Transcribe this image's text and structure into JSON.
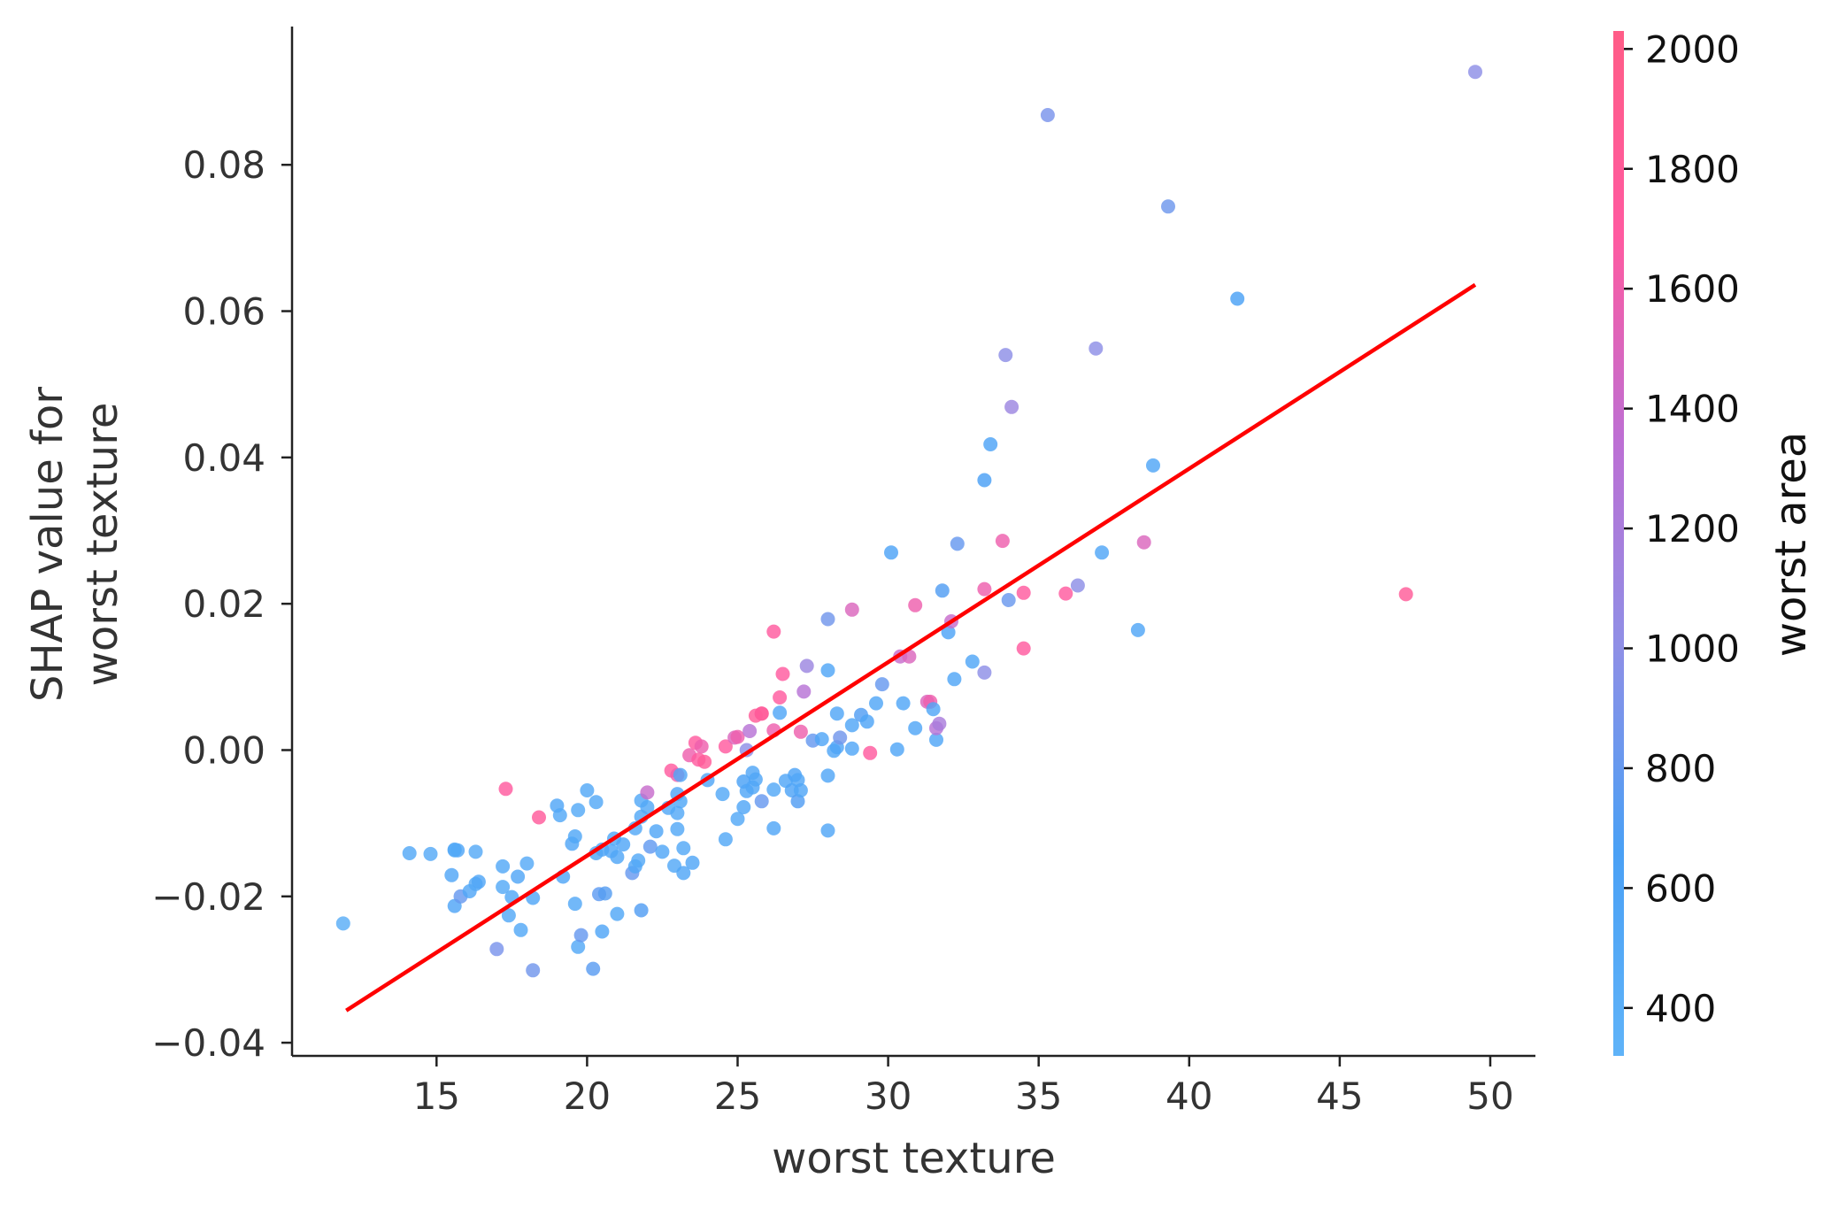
{
  "chart_data": {
    "type": "scatter",
    "title": "",
    "xlabel": "worst texture",
    "ylabel_lines": [
      "SHAP value for",
      "worst texture"
    ],
    "xlim": [
      10.2,
      51.5
    ],
    "ylim": [
      -0.0418,
      0.0989
    ],
    "xticks": [
      15,
      20,
      25,
      30,
      35,
      40,
      45,
      50
    ],
    "xtick_labels": [
      "15",
      "20",
      "25",
      "30",
      "35",
      "40",
      "45",
      "50"
    ],
    "yticks": [
      -0.04,
      -0.02,
      0.0,
      0.02,
      0.04,
      0.06,
      0.08
    ],
    "ytick_labels": [
      "−0.04",
      "−0.02",
      "0.00",
      "0.02",
      "0.04",
      "0.06",
      "0.08"
    ],
    "grid": false,
    "colorbar": {
      "label": "worst area",
      "range": [
        320,
        2030
      ],
      "ticks": [
        400,
        600,
        800,
        1000,
        1200,
        1400,
        1600,
        1800,
        2000
      ],
      "tick_labels": [
        "400",
        "600",
        "800",
        "1000",
        "1200",
        "1400",
        "1600",
        "1800",
        "2000"
      ],
      "colors": [
        "#5fb3f8",
        "#4aa0f5",
        "#8f8fe6",
        "#bd6fd4",
        "#ff5aa0",
        "#ff5c87"
      ]
    },
    "fit_line": {
      "color": "#ff0000",
      "points": [
        [
          12.0,
          -0.0356
        ],
        [
          49.5,
          0.0636
        ]
      ]
    },
    "series": [
      {
        "points": [
          [
            11.9,
            -0.0237,
            420
          ],
          [
            14.1,
            -0.0141,
            520
          ],
          [
            14.8,
            -0.0142,
            480
          ],
          [
            15.5,
            -0.0171,
            560
          ],
          [
            15.6,
            -0.0136,
            520
          ],
          [
            15.6,
            -0.0213,
            580
          ],
          [
            15.7,
            -0.0137,
            560
          ],
          [
            15.8,
            -0.02,
            800
          ],
          [
            16.1,
            -0.0193,
            560
          ],
          [
            16.3,
            -0.0139,
            480
          ],
          [
            16.3,
            -0.0183,
            520
          ],
          [
            16.4,
            -0.018,
            560
          ],
          [
            15.6,
            -0.0137,
            500
          ],
          [
            17.0,
            -0.0272,
            900
          ],
          [
            17.2,
            -0.0187,
            500
          ],
          [
            17.2,
            -0.0159,
            520
          ],
          [
            17.3,
            -0.0053,
            1700
          ],
          [
            17.4,
            -0.0226,
            520
          ],
          [
            17.5,
            -0.0201,
            540
          ],
          [
            17.7,
            -0.0173,
            560
          ],
          [
            17.8,
            -0.0246,
            520
          ],
          [
            18.0,
            -0.0155,
            480
          ],
          [
            18.2,
            -0.0202,
            560
          ],
          [
            18.2,
            -0.0301,
            860
          ],
          [
            18.4,
            -0.0092,
            1750
          ],
          [
            19.0,
            -0.0076,
            560
          ],
          [
            19.1,
            -0.0089,
            520
          ],
          [
            19.2,
            -0.0173,
            560
          ],
          [
            19.5,
            -0.0128,
            560
          ],
          [
            19.6,
            -0.021,
            520
          ],
          [
            19.6,
            -0.0118,
            540
          ],
          [
            19.7,
            -0.0082,
            500
          ],
          [
            19.7,
            -0.0269,
            520
          ],
          [
            19.8,
            -0.0253,
            800
          ],
          [
            20.0,
            -0.0055,
            520
          ],
          [
            20.2,
            -0.0299,
            740
          ],
          [
            20.3,
            -0.0141,
            560
          ],
          [
            20.3,
            -0.0071,
            520
          ],
          [
            20.4,
            -0.0197,
            760
          ],
          [
            20.5,
            -0.0136,
            560
          ],
          [
            20.5,
            -0.0248,
            580
          ],
          [
            20.6,
            -0.0196,
            720
          ],
          [
            20.8,
            -0.0138,
            560
          ],
          [
            20.9,
            -0.0121,
            540
          ],
          [
            21.0,
            -0.0224,
            540
          ],
          [
            21.0,
            -0.0146,
            560
          ],
          [
            21.2,
            -0.0129,
            560
          ],
          [
            21.5,
            -0.0168,
            800
          ],
          [
            21.6,
            -0.0107,
            520
          ],
          [
            21.6,
            -0.0159,
            560
          ],
          [
            21.7,
            -0.0151,
            520
          ],
          [
            21.8,
            -0.0091,
            520
          ],
          [
            21.8,
            -0.0069,
            520
          ],
          [
            21.8,
            -0.0219,
            700
          ],
          [
            22.0,
            -0.0078,
            520
          ],
          [
            22.0,
            -0.0058,
            1400
          ],
          [
            22.1,
            -0.0132,
            780
          ],
          [
            22.3,
            -0.0111,
            560
          ],
          [
            22.5,
            -0.0139,
            560
          ],
          [
            22.7,
            -0.0079,
            520
          ],
          [
            22.8,
            -0.0028,
            1700
          ],
          [
            22.9,
            -0.0158,
            520
          ],
          [
            23.0,
            -0.0086,
            520
          ],
          [
            23.0,
            -0.0108,
            520
          ],
          [
            23.0,
            -0.006,
            560
          ],
          [
            23.0,
            -0.0034,
            1600
          ],
          [
            23.1,
            -0.0034,
            560
          ],
          [
            23.1,
            -0.007,
            540
          ],
          [
            23.2,
            -0.0168,
            560
          ],
          [
            23.2,
            -0.0134,
            520
          ],
          [
            23.4,
            -0.0007,
            1600
          ],
          [
            23.5,
            -0.0154,
            560
          ],
          [
            23.6,
            0.001,
            1700
          ],
          [
            23.7,
            -0.0013,
            1700
          ],
          [
            23.8,
            0.0005,
            1600
          ],
          [
            23.9,
            -0.0016,
            1800
          ],
          [
            24.0,
            -0.0041,
            560
          ],
          [
            24.5,
            -0.006,
            520
          ],
          [
            24.6,
            -0.0122,
            520
          ],
          [
            24.6,
            0.0005,
            1700
          ],
          [
            24.9,
            0.0017,
            1500
          ],
          [
            25.0,
            0.0018,
            1600
          ],
          [
            25.0,
            -0.0094,
            520
          ],
          [
            25.2,
            -0.0043,
            640
          ],
          [
            25.2,
            -0.0078,
            560
          ],
          [
            25.3,
            0.0,
            1000
          ],
          [
            25.3,
            -0.0056,
            560
          ],
          [
            25.4,
            0.0026,
            1300
          ],
          [
            25.5,
            -0.0031,
            560
          ],
          [
            25.5,
            -0.0051,
            560
          ],
          [
            25.6,
            0.0047,
            1800
          ],
          [
            25.6,
            -0.004,
            560
          ],
          [
            25.8,
            0.005,
            1700
          ],
          [
            25.8,
            -0.007,
            800
          ],
          [
            25.8,
            0.005,
            1800
          ],
          [
            26.2,
            0.0162,
            1700
          ],
          [
            26.2,
            -0.0107,
            560
          ],
          [
            26.2,
            0.0027,
            1600
          ],
          [
            26.2,
            -0.0054,
            520
          ],
          [
            26.4,
            0.0051,
            560
          ],
          [
            26.4,
            0.0072,
            1700
          ],
          [
            26.5,
            0.0104,
            1700
          ],
          [
            26.6,
            -0.0042,
            560
          ],
          [
            26.8,
            -0.0055,
            600
          ],
          [
            26.9,
            -0.0034,
            600
          ],
          [
            27.0,
            -0.007,
            700
          ],
          [
            27.0,
            -0.0041,
            560
          ],
          [
            27.1,
            -0.0055,
            560
          ],
          [
            27.1,
            0.0025,
            1600
          ],
          [
            27.2,
            0.008,
            1300
          ],
          [
            27.3,
            0.0115,
            1100
          ],
          [
            27.5,
            0.0013,
            800
          ],
          [
            27.8,
            0.0015,
            560
          ],
          [
            28.0,
            0.0109,
            560
          ],
          [
            28.0,
            -0.0035,
            560
          ],
          [
            28.0,
            -0.011,
            560
          ],
          [
            28.0,
            0.0179,
            860
          ],
          [
            28.3,
            0.005,
            560
          ],
          [
            28.2,
            -0.0001,
            560
          ],
          [
            28.3,
            0.0004,
            580
          ],
          [
            28.4,
            0.0017,
            860
          ],
          [
            28.8,
            0.0002,
            560
          ],
          [
            28.8,
            0.0192,
            1500
          ],
          [
            28.8,
            0.0034,
            560
          ],
          [
            29.1,
            0.0048,
            700
          ],
          [
            29.3,
            0.0039,
            580
          ],
          [
            29.4,
            -0.0004,
            1700
          ],
          [
            29.6,
            0.0064,
            560
          ],
          [
            29.8,
            0.009,
            800
          ],
          [
            30.1,
            0.027,
            600
          ],
          [
            30.3,
            0.0001,
            560
          ],
          [
            30.4,
            0.0128,
            1400
          ],
          [
            30.5,
            0.0064,
            560
          ],
          [
            30.7,
            0.0128,
            1500
          ],
          [
            30.9,
            0.0198,
            1600
          ],
          [
            30.9,
            0.003,
            560
          ],
          [
            31.3,
            0.0066,
            1500
          ],
          [
            31.4,
            0.0066,
            1600
          ],
          [
            31.5,
            0.0056,
            560
          ],
          [
            31.6,
            0.0014,
            560
          ],
          [
            31.6,
            0.003,
            1300
          ],
          [
            31.7,
            0.0036,
            1200
          ],
          [
            31.8,
            0.0218,
            700
          ],
          [
            32.0,
            0.0161,
            600
          ],
          [
            32.1,
            0.0176,
            1400
          ],
          [
            32.2,
            0.0097,
            560
          ],
          [
            32.3,
            0.0282,
            800
          ],
          [
            32.8,
            0.0121,
            560
          ],
          [
            33.2,
            0.0369,
            660
          ],
          [
            33.2,
            0.022,
            1600
          ],
          [
            33.2,
            0.0106,
            1000
          ],
          [
            33.4,
            0.0418,
            600
          ],
          [
            33.8,
            0.0286,
            1600
          ],
          [
            33.9,
            0.054,
            1000
          ],
          [
            34.0,
            0.0205,
            820
          ],
          [
            34.1,
            0.0469,
            1100
          ],
          [
            34.5,
            0.0139,
            1700
          ],
          [
            34.5,
            0.0215,
            1700
          ],
          [
            35.3,
            0.0868,
            900
          ],
          [
            35.9,
            0.0214,
            1700
          ],
          [
            36.3,
            0.0225,
            1000
          ],
          [
            36.9,
            0.0549,
            1000
          ],
          [
            37.1,
            0.027,
            560
          ],
          [
            38.3,
            0.0164,
            560
          ],
          [
            38.5,
            0.0284,
            1500
          ],
          [
            38.8,
            0.0389,
            560
          ],
          [
            39.3,
            0.0743,
            840
          ],
          [
            41.6,
            0.0617,
            640
          ],
          [
            47.2,
            0.0213,
            1800
          ],
          [
            49.5,
            0.0927,
            1000
          ]
        ]
      }
    ]
  }
}
